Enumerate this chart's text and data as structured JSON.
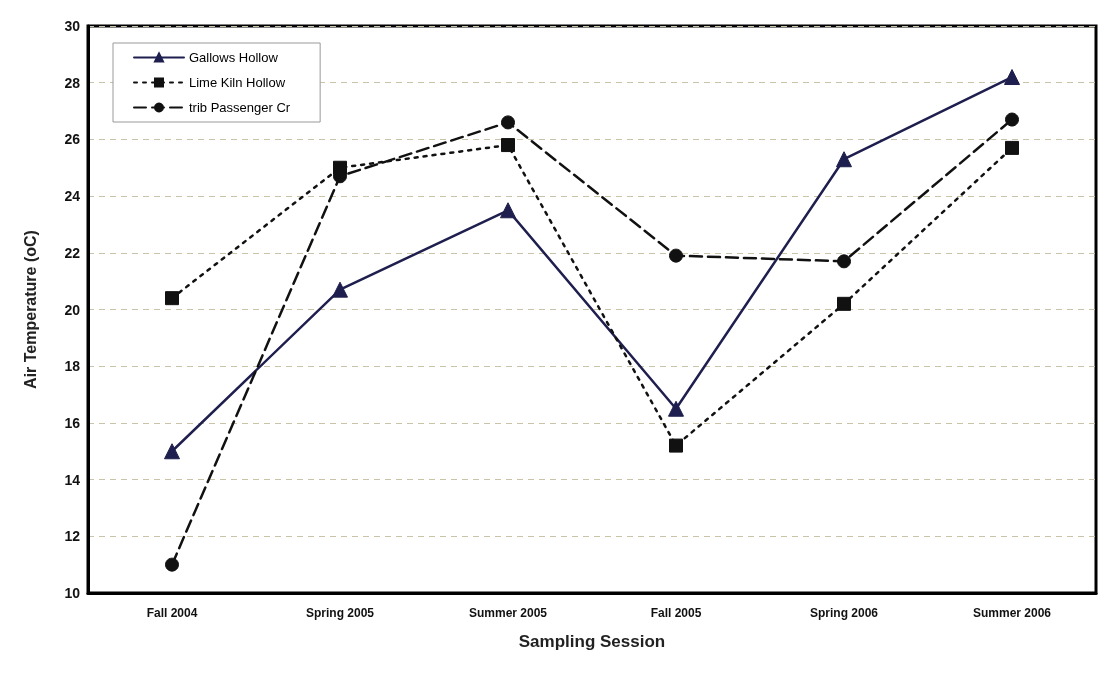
{
  "chart_data": {
    "type": "line",
    "xlabel": "Sampling Session",
    "ylabel": "Air Temperature (oC)",
    "categories": [
      "Fall 2004",
      "Spring 2005",
      "Summer 2005",
      "Fall 2005",
      "Spring 2006",
      "Summer 2006"
    ],
    "series": [
      {
        "name": "Gallows Hollow",
        "color": "#1f1f4f",
        "marker": "triangle",
        "line_style": "solid",
        "values": [
          15.0,
          20.7,
          23.5,
          16.5,
          25.3,
          28.2
        ]
      },
      {
        "name": "Lime Kiln Hollow",
        "color": "#111111",
        "marker": "square",
        "line_style": "dotted",
        "values": [
          20.4,
          25.0,
          25.8,
          15.2,
          20.2,
          25.7
        ]
      },
      {
        "name": "trib Passenger Cr",
        "color": "#111111",
        "marker": "circle",
        "line_style": "dashed",
        "values": [
          11.0,
          24.7,
          26.6,
          21.9,
          21.7,
          26.7
        ]
      }
    ],
    "ylim": [
      10,
      30
    ],
    "yticks": [
      10,
      12,
      14,
      16,
      18,
      20,
      22,
      24,
      26,
      28,
      30
    ],
    "grid": "y",
    "legend": "top left"
  }
}
